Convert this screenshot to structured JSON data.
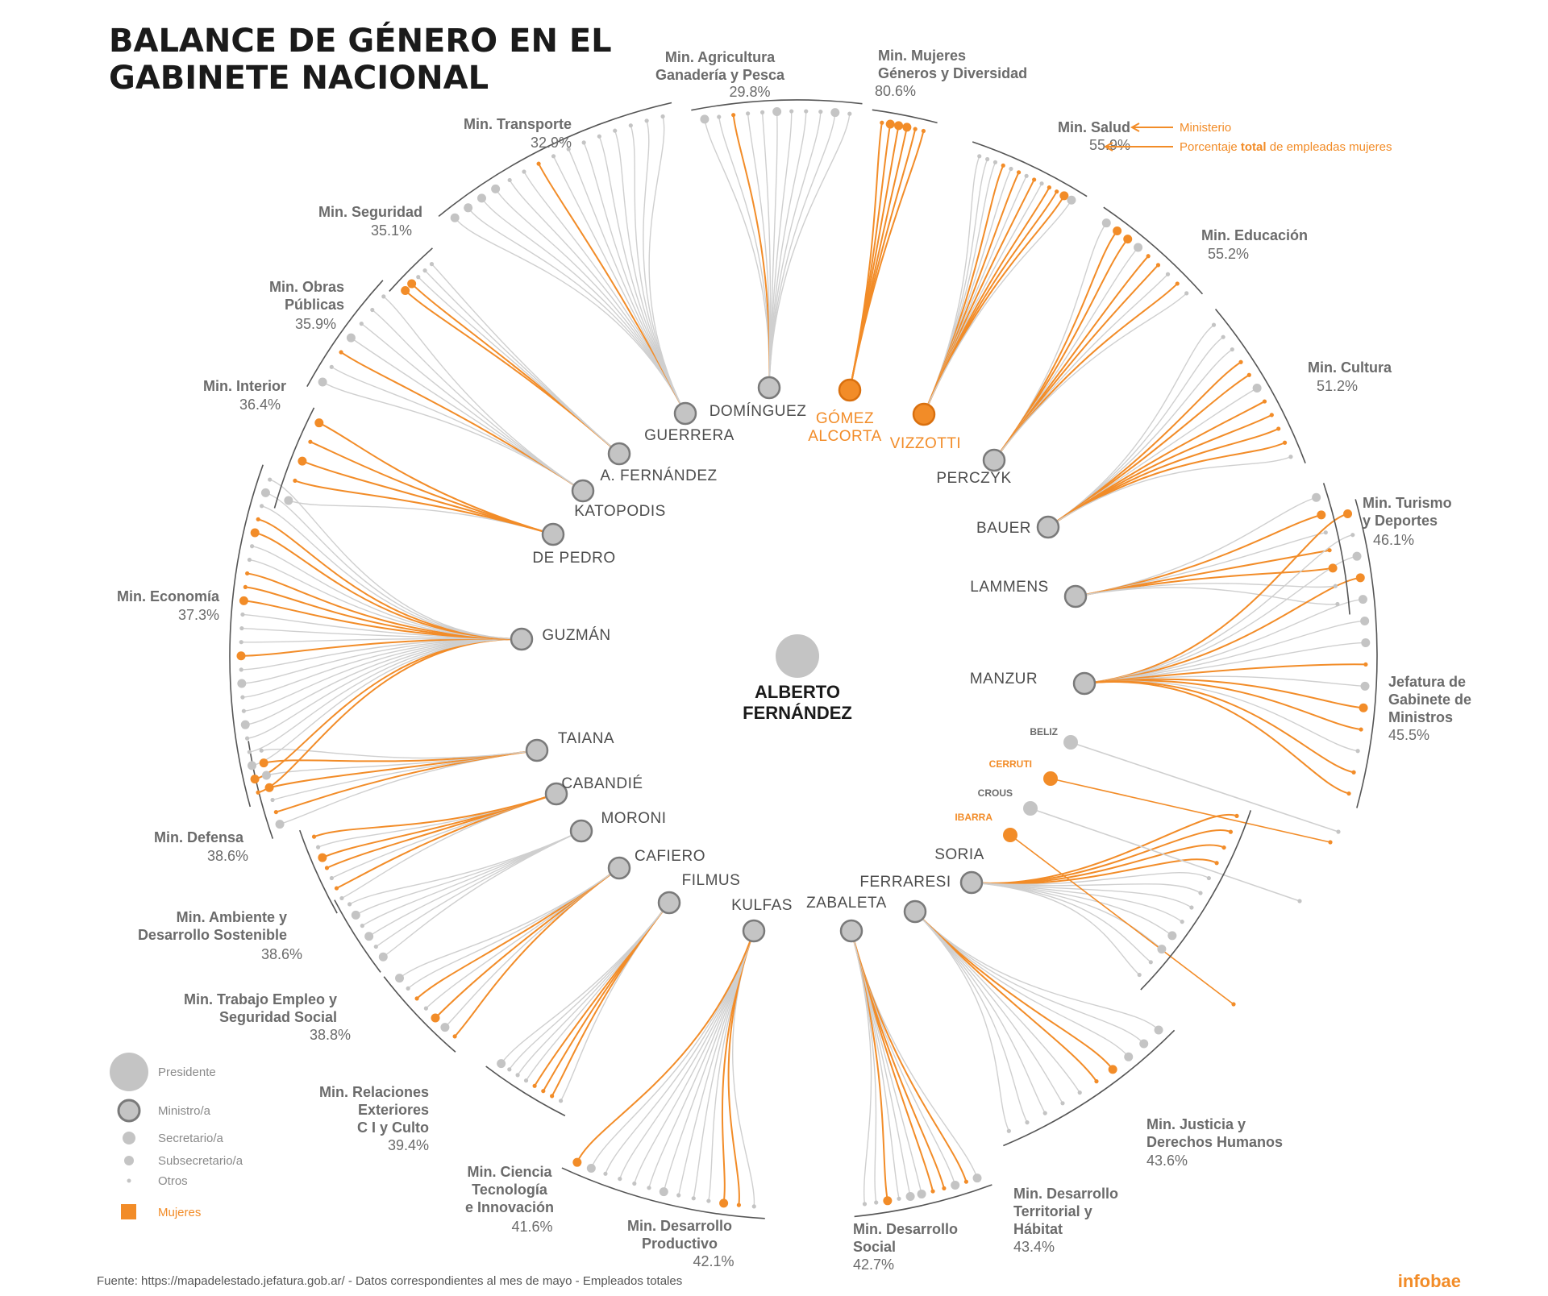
{
  "title": {
    "line1": "BALANCE DE GÉNERO EN EL",
    "line2": "GABINETE NACIONAL"
  },
  "president": {
    "name_line1": "ALBERTO",
    "name_line2": "FERNÁNDEZ"
  },
  "colors": {
    "women": "#f28c28",
    "men": "#c4c4c4",
    "text": "#6b6b6b",
    "dark": "#1a1a1a"
  },
  "annotation": {
    "ministry": "Ministerio",
    "pct_prefix": "Porcentaje ",
    "pct_bold": "total",
    "pct_suffix": " de empleadas mujeres"
  },
  "ministries": [
    {
      "id": "agricultura",
      "label": [
        "Min. Agricultura",
        "Ganadería y Pesca"
      ],
      "pct": "29.8%",
      "chief": [
        "DOMÍNGUEZ"
      ],
      "woman": false,
      "n": 11,
      "w": [
        2
      ],
      "big": [
        0,
        5,
        9
      ]
    },
    {
      "id": "mujeres",
      "label": [
        "Min. Mujeres",
        "Géneros y Diversidad"
      ],
      "pct": "80.6%",
      "chief": [
        "GÓMEZ",
        "ALCORTA"
      ],
      "woman": true,
      "n": 6,
      "w": [
        0,
        1,
        2,
        3,
        4,
        5
      ],
      "big": [
        1,
        2,
        3
      ]
    },
    {
      "id": "salud",
      "label": [
        "Min. Salud"
      ],
      "pct": "55.9%",
      "chief": [
        "VIZZOTTI"
      ],
      "woman": true,
      "n": 13,
      "w": [
        3,
        5,
        7,
        9,
        10,
        11
      ],
      "big": [
        11,
        12
      ]
    },
    {
      "id": "educacion",
      "label": [
        "Min. Educación"
      ],
      "pct": "55.2%",
      "chief": [
        "PERCZYK"
      ],
      "woman": false,
      "n": 9,
      "w": [
        1,
        2,
        4,
        5,
        7
      ],
      "big": [
        0,
        1,
        2,
        3
      ]
    },
    {
      "id": "cultura",
      "label": [
        "Min. Cultura"
      ],
      "pct": "51.2%",
      "chief": [
        "BAUER"
      ],
      "woman": false,
      "n": 11,
      "w": [
        3,
        4,
        6,
        7,
        8,
        9
      ],
      "big": [
        5
      ]
    },
    {
      "id": "turismo",
      "label": [
        "Min. Turismo",
        "y Deportes"
      ],
      "pct": "46.1%",
      "chief": [
        "LAMMENS"
      ],
      "woman": false,
      "n": 7,
      "w": [
        1,
        3,
        4
      ],
      "big": [
        0,
        1,
        4
      ]
    },
    {
      "id": "jefatura",
      "label": [
        "Jefatura de",
        "Gabinete de",
        "Ministros"
      ],
      "pct": "45.5%",
      "chief": [
        "MANZUR"
      ],
      "woman": false,
      "n": 14,
      "w": [
        0,
        3,
        7,
        9,
        10,
        12,
        13
      ],
      "big": [
        0,
        2,
        3,
        4,
        5,
        6,
        8,
        9
      ]
    },
    {
      "id": "justicia",
      "label": [
        "Min. Justicia y",
        "Derechos Humanos"
      ],
      "pct": "43.6%",
      "chief": [
        "SORIA"
      ],
      "woman": false,
      "n": 12,
      "w": [
        0,
        1,
        2,
        3
      ],
      "big": [
        8,
        9
      ]
    },
    {
      "id": "territorial",
      "label": [
        "Min. Desarrollo",
        "Territorial y",
        "Hábitat"
      ],
      "pct": "43.4%",
      "chief": [
        "FERRARESI"
      ],
      "woman": false,
      "n": 10,
      "w": [
        3,
        4
      ],
      "big": [
        0,
        1,
        2,
        3
      ]
    },
    {
      "id": "social",
      "label": [
        "Min. Desarrollo",
        "Social"
      ],
      "pct": "42.7%",
      "chief": [
        "ZABALETA"
      ],
      "woman": false,
      "n": 11,
      "w": [
        1,
        3,
        4,
        8
      ],
      "big": [
        0,
        2,
        5,
        6,
        8
      ]
    },
    {
      "id": "productivo",
      "label": [
        "Min. Desarrollo",
        "Productivo"
      ],
      "pct": "42.1%",
      "chief": [
        "KULFAS"
      ],
      "woman": false,
      "n": 13,
      "w": [
        1,
        2,
        12
      ],
      "big": [
        2,
        6,
        11,
        12
      ]
    },
    {
      "id": "ciencia",
      "label": [
        "Min. Ciencia",
        "Tecnología",
        "e Innovación"
      ],
      "pct": "41.6%",
      "chief": [
        "FILMUS"
      ],
      "woman": false,
      "n": 8,
      "w": [
        1,
        2,
        3
      ],
      "big": [
        7
      ]
    },
    {
      "id": "exteriores",
      "label": [
        "Min. Relaciones",
        "Exteriores",
        "C I y Culto"
      ],
      "pct": "39.4%",
      "chief": [
        "CAFIERO"
      ],
      "woman": false,
      "n": 7,
      "w": [
        0,
        2,
        4
      ],
      "big": [
        1,
        2,
        6
      ]
    },
    {
      "id": "trabajo",
      "label": [
        "Min. Trabajo Empleo y",
        "Seguridad Social"
      ],
      "pct": "38.8%",
      "chief": [
        "MORONI"
      ],
      "woman": false,
      "n": 6,
      "w": [],
      "big": [
        0,
        2,
        4
      ]
    },
    {
      "id": "ambiente",
      "label": [
        "Min. Ambiente y",
        "Desarrollo Sostenible"
      ],
      "pct": "38.6%",
      "chief": [
        "CABANDIÉ"
      ],
      "woman": false,
      "n": 7,
      "w": [
        1,
        3,
        4,
        6
      ],
      "big": [
        4
      ]
    },
    {
      "id": "defensa",
      "label": [
        "Min. Defensa"
      ],
      "pct": "38.6%",
      "chief": [
        "TAIANA"
      ],
      "woman": false,
      "n": 7,
      "w": [
        1,
        3,
        5
      ],
      "big": [
        0,
        3,
        4,
        5
      ]
    },
    {
      "id": "economia",
      "label": [
        "Min. Economía"
      ],
      "pct": "37.3%",
      "chief": [
        "GUZMÁN"
      ],
      "woman": false,
      "n": 24,
      "w": [
        0,
        1,
        10,
        14,
        15,
        16,
        19,
        20
      ],
      "big": [
        1,
        2,
        5,
        8,
        10,
        14,
        19,
        22
      ]
    },
    {
      "id": "interior",
      "label": [
        "Min. Interior"
      ],
      "pct": "36.4%",
      "chief": [
        "DE PEDRO"
      ],
      "woman": false,
      "n": 5,
      "w": [
        1,
        2,
        3,
        4
      ],
      "big": [
        0,
        2,
        4
      ]
    },
    {
      "id": "obras",
      "label": [
        "Min. Obras",
        "Públicas"
      ],
      "pct": "35.9%",
      "chief": [
        "KATOPODIS"
      ],
      "woman": false,
      "n": 7,
      "w": [
        2
      ],
      "big": [
        0,
        3
      ]
    },
    {
      "id": "seguridad",
      "label": [
        "Min. Seguridad"
      ],
      "pct": "35.1%",
      "chief": [
        "A. FERNÁNDEZ"
      ],
      "woman": false,
      "n": 5,
      "w": [
        0,
        1
      ],
      "big": [
        0,
        1
      ]
    },
    {
      "id": "transporte",
      "label": [
        "Min. Transporte"
      ],
      "pct": "32.9%",
      "chief": [
        "GUERRERA"
      ],
      "woman": false,
      "n": 15,
      "w": [
        6
      ],
      "big": [
        0,
        1,
        2,
        3
      ]
    }
  ],
  "agencies": [
    {
      "name": "BELIZ",
      "woman": false
    },
    {
      "name": "CERRUTI",
      "woman": true
    },
    {
      "name": "CROUS",
      "woman": false
    },
    {
      "name": "IBARRA",
      "woman": true
    }
  ],
  "legend": {
    "items": [
      {
        "label": "Presidente",
        "kind": "presidente"
      },
      {
        "label": "Ministro/a",
        "kind": "ministro"
      },
      {
        "label": "Secretario/a",
        "kind": "secretario"
      },
      {
        "label": "Subsecretario/a",
        "kind": "subsecretario"
      },
      {
        "label": "Otros",
        "kind": "otros"
      },
      {
        "label": "Mujeres",
        "kind": "mujeres"
      }
    ]
  },
  "footer": {
    "source": "Fuente: https://mapadelestado.jefatura.gob.ar/ - Datos correspondientes al mes de mayo -  Empleados totales",
    "brand": "infobae"
  }
}
